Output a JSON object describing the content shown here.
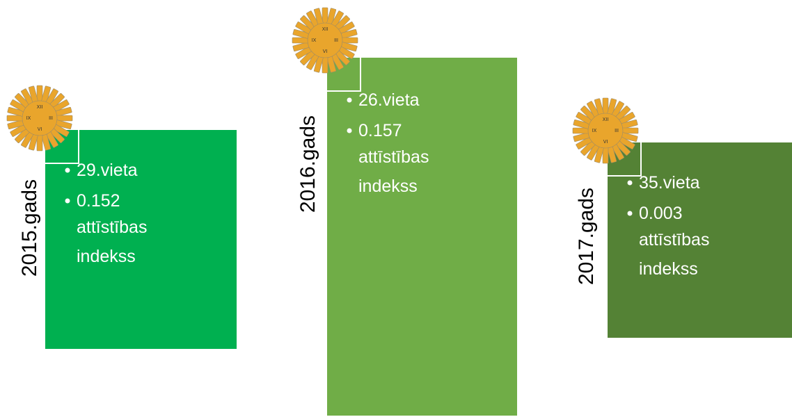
{
  "clock_numerals": [
    "XII",
    "III",
    "VI",
    "IX"
  ],
  "items": [
    {
      "year": "2015.gads",
      "bullets": [
        "29.vieta",
        "0.152",
        "attīstības",
        "indekss"
      ]
    },
    {
      "year": "2016.gads",
      "bullets": [
        "26.vieta",
        "0.157",
        "attīstības",
        "indekss"
      ]
    },
    {
      "year": "2017.gads",
      "bullets": [
        "35.vieta",
        "0.003",
        "attīstības",
        "indekss"
      ]
    }
  ]
}
